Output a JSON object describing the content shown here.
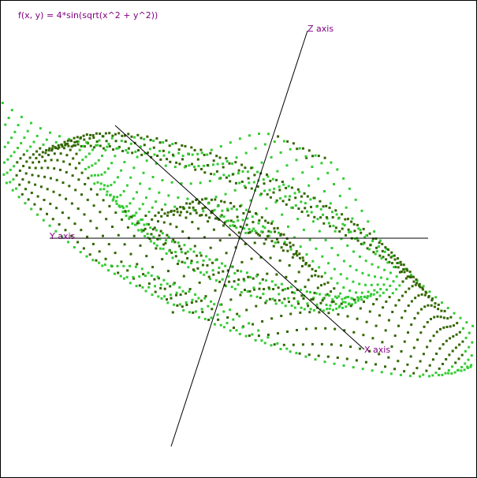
{
  "window": {
    "function_title": "f(x, y) = 4*sin(sqrt(x^2 + y^2))"
  },
  "axes": {
    "x_label": "X axis",
    "y_label": "Y axis",
    "z_label": "Z axis"
  },
  "colors": {
    "label": "#800080",
    "axis_line": "#000000",
    "frame": "#000000",
    "surface_front": "#33cc33",
    "surface_back": "#336600"
  },
  "chart_data": {
    "type": "scatter",
    "function": "4*sin(sqrt(x^2 + y^2))",
    "xlabel": "X axis",
    "ylabel": "Y axis",
    "zlabel": "Z axis",
    "grid": false
  }
}
